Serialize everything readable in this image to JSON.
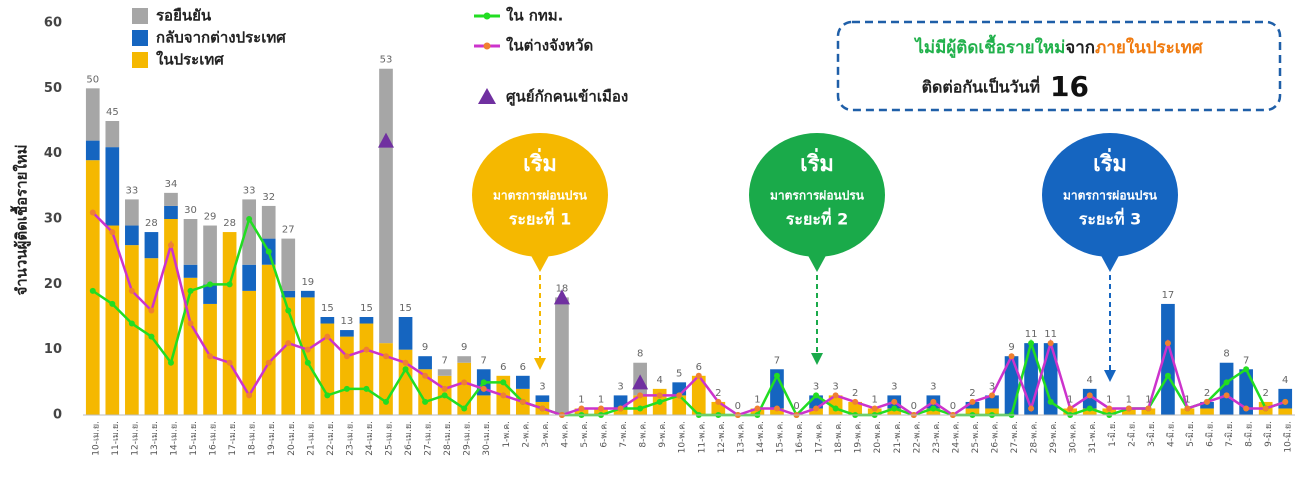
{
  "chart_data": {
    "type": "bar",
    "y_label": "จำนวนผู้ติดเชื้อรายใหม่",
    "categories": [
      "10-เม.ย.",
      "11-เม.ย.",
      "12-เม.ย.",
      "13-เม.ย.",
      "14-เม.ย.",
      "15-เม.ย.",
      "16-เม.ย.",
      "17-เม.ย.",
      "18-เม.ย.",
      "19-เม.ย.",
      "20-เม.ย.",
      "21-เม.ย.",
      "22-เม.ย.",
      "23-เม.ย.",
      "24-เม.ย.",
      "25-เม.ย.",
      "26-เม.ย.",
      "27-เม.ย.",
      "28-เม.ย.",
      "29-เม.ย.",
      "30-เม.ย.",
      "1-พ.ค.",
      "2-พ.ค.",
      "3-พ.ค.",
      "4-พ.ค.",
      "5-พ.ค.",
      "6-พ.ค.",
      "7-พ.ค.",
      "8-พ.ค.",
      "9-พ.ค.",
      "10-พ.ค.",
      "11-พ.ค.",
      "12-พ.ค.",
      "13-พ.ค.",
      "14-พ.ค.",
      "15-พ.ค.",
      "16-พ.ค.",
      "17-พ.ค.",
      "18-พ.ค.",
      "19-พ.ค.",
      "20-พ.ค.",
      "21-พ.ค.",
      "22-พ.ค.",
      "23-พ.ค.",
      "24-พ.ค.",
      "25-พ.ค.",
      "26-พ.ค.",
      "27-พ.ค.",
      "28-พ.ค.",
      "29-พ.ค.",
      "30-พ.ค.",
      "31-พ.ค.",
      "1-มิ.ย.",
      "2-มิ.ย.",
      "3-มิ.ย.",
      "4-มิ.ย.",
      "5-มิ.ย.",
      "6-มิ.ย.",
      "7-มิ.ย.",
      "8-มิ.ย.",
      "9-มิ.ย.",
      "10-มิ.ย."
    ],
    "series": [
      {
        "name": "ในประเทศ",
        "type": "bar",
        "color": "#f5b800",
        "values": [
          39,
          29,
          26,
          24,
          30,
          21,
          17,
          28,
          19,
          23,
          18,
          18,
          14,
          12,
          14,
          11,
          10,
          7,
          6,
          8,
          3,
          6,
          4,
          2,
          0,
          1,
          1,
          1,
          3,
          4,
          3,
          6,
          2,
          0,
          1,
          1,
          0,
          1,
          3,
          2,
          1,
          1,
          0,
          1,
          0,
          1,
          1,
          0,
          0,
          0,
          1,
          1,
          1,
          1,
          1,
          0,
          1,
          1,
          0,
          0,
          2,
          1
        ]
      },
      {
        "name": "กลับจากต่างประเทศ",
        "type": "bar",
        "color": "#1565c0",
        "values": [
          3,
          12,
          3,
          4,
          2,
          2,
          3,
          0,
          4,
          4,
          1,
          1,
          1,
          1,
          1,
          0,
          5,
          2,
          0,
          0,
          4,
          0,
          2,
          1,
          0,
          0,
          0,
          2,
          0,
          0,
          2,
          0,
          0,
          0,
          0,
          6,
          0,
          2,
          0,
          0,
          0,
          2,
          0,
          2,
          0,
          1,
          2,
          9,
          11,
          11,
          0,
          3,
          0,
          0,
          0,
          17,
          0,
          1,
          8,
          7,
          0,
          3
        ]
      },
      {
        "name": "รอยืนยัน",
        "type": "bar",
        "color": "#a6a6a6",
        "values": [
          8,
          4,
          4,
          0,
          2,
          7,
          9,
          0,
          10,
          5,
          8,
          0,
          0,
          0,
          0,
          42,
          0,
          0,
          1,
          1,
          0,
          0,
          0,
          0,
          18,
          0,
          0,
          0,
          5,
          0,
          0,
          0,
          0,
          0,
          0,
          0,
          0,
          0,
          0,
          0,
          0,
          0,
          0,
          0,
          0,
          0,
          0,
          0,
          0,
          0,
          0,
          0,
          0,
          0,
          0,
          0,
          0,
          0,
          0,
          0,
          0,
          0
        ]
      },
      {
        "name": "ใน กทม.",
        "type": "line",
        "color": "#22dd22",
        "values": [
          19,
          17,
          14,
          12,
          8,
          19,
          20,
          20,
          30,
          25,
          16,
          8,
          3,
          4,
          4,
          2,
          7,
          2,
          3,
          1,
          5,
          5,
          2,
          1,
          0,
          0,
          0,
          1,
          1,
          2,
          3,
          0,
          0,
          0,
          0,
          6,
          0,
          3,
          1,
          0,
          0,
          1,
          0,
          1,
          0,
          0,
          0,
          0,
          11,
          2,
          0,
          1,
          0,
          1,
          1,
          6,
          1,
          2,
          5,
          7,
          1,
          2
        ]
      },
      {
        "name": "ในต่างจังหวัด",
        "type": "line",
        "color": "#cc33cc",
        "values": [
          31,
          28,
          19,
          16,
          26,
          14,
          9,
          8,
          3,
          8,
          11,
          10,
          12,
          9,
          10,
          9,
          8,
          6,
          4,
          5,
          4,
          3,
          2,
          1,
          0,
          1,
          1,
          1,
          3,
          3,
          3,
          6,
          2,
          0,
          1,
          1,
          0,
          1,
          3,
          2,
          1,
          2,
          0,
          2,
          0,
          2,
          3,
          9,
          1,
          11,
          1,
          3,
          1,
          1,
          1,
          11,
          1,
          2,
          3,
          1,
          1,
          2
        ]
      },
      {
        "name": "ศูนย์กักคนเข้าเมือง",
        "type": "marker",
        "color": "#7030a0",
        "values": [
          null,
          null,
          null,
          null,
          null,
          null,
          null,
          null,
          null,
          null,
          null,
          null,
          null,
          null,
          null,
          42,
          null,
          null,
          null,
          null,
          null,
          null,
          null,
          null,
          18,
          null,
          null,
          null,
          5,
          null,
          null,
          null,
          null,
          null,
          null,
          null,
          null,
          null,
          null,
          null,
          null,
          null,
          null,
          null,
          null,
          null,
          null,
          null,
          null,
          null,
          null,
          null,
          null,
          null,
          null,
          null,
          null,
          null,
          null,
          null,
          null,
          null
        ]
      }
    ],
    "totals": [
      50,
      45,
      33,
      28,
      34,
      30,
      29,
      28,
      33,
      32,
      27,
      19,
      15,
      13,
      15,
      53,
      15,
      9,
      7,
      9,
      7,
      6,
      6,
      3,
      18,
      1,
      1,
      3,
      8,
      4,
      5,
      6,
      2,
      0,
      1,
      7,
      0,
      3,
      3,
      2,
      1,
      3,
      0,
      3,
      0,
      2,
      3,
      9,
      11,
      11,
      1,
      4,
      1,
      1,
      1,
      17,
      1,
      2,
      8,
      7,
      2,
      4
    ],
    "ylim": [
      0,
      60
    ],
    "yticks": [
      0,
      10,
      20,
      30,
      40,
      50,
      60
    ],
    "notice": {
      "line1_a": "ไม่มีผู้ติดเชื้อรายใหม่",
      "line1_b": "จาก",
      "line1_c": "ภายในประเทศ",
      "line2": "ติดต่อกันเป็นวันที่",
      "days": "16"
    },
    "callouts": [
      {
        "title": "เริ่ม",
        "text": "มาตรการผ่อนปรน",
        "phase": "ระยะที่ 1"
      },
      {
        "title": "เริ่ม",
        "text": "มาตรการผ่อนปรน",
        "phase": "ระยะที่ 2"
      },
      {
        "title": "เริ่ม",
        "text": "มาตรการผ่อนปรน",
        "phase": "ระยะที่ 3"
      }
    ]
  }
}
